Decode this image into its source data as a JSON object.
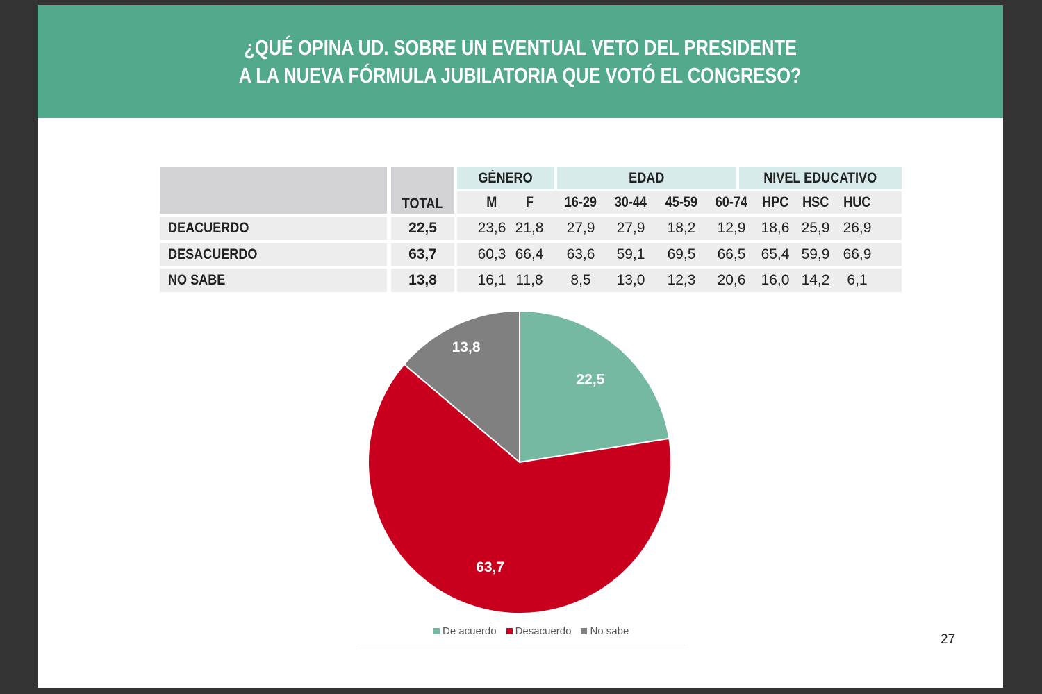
{
  "title": {
    "line1": "¿QUÉ OPINA UD. SOBRE UN EVENTUAL VETO DEL PRESIDENTE",
    "line2": "A LA NUEVA FÓRMULA JUBILATORIA QUE VOTÓ EL CONGRESO?"
  },
  "table": {
    "groups": [
      "GÉNERO",
      "EDAD",
      "NIVEL EDUCATIVO"
    ],
    "total_header": "TOTAL",
    "columns": [
      "M",
      "F",
      "16-29",
      "30-44",
      "45-59",
      "60-74",
      "HPC",
      "HSC",
      "HUC"
    ],
    "rows": [
      {
        "label": "DEACUERDO",
        "total": "22,5",
        "values": [
          "23,6",
          "21,8",
          "27,9",
          "27,9",
          "18,2",
          "12,9",
          "18,6",
          "25,9",
          "26,9"
        ]
      },
      {
        "label": "DESACUERDO",
        "total": "63,7",
        "values": [
          "60,3",
          "66,4",
          "63,6",
          "59,1",
          "69,5",
          "66,5",
          "65,4",
          "59,9",
          "66,9"
        ]
      },
      {
        "label": "NO SABE",
        "total": "13,8",
        "values": [
          "16,1",
          "11,8",
          "8,5",
          "13,0",
          "12,3",
          "20,6",
          "16,0",
          "14,2",
          "6,1"
        ]
      }
    ]
  },
  "chart_data": {
    "type": "pie",
    "categories": [
      "De acuerdo",
      "Desacuerdo",
      "No sabe"
    ],
    "values": [
      22.5,
      63.7,
      13.8
    ],
    "data_labels": [
      "22,5",
      "63,7",
      "13,8"
    ],
    "colors": [
      "#76b9a3",
      "#c8001e",
      "#808080"
    ],
    "start": "12 o'clock, clockwise",
    "legend": "bottom"
  },
  "page_number": "27"
}
